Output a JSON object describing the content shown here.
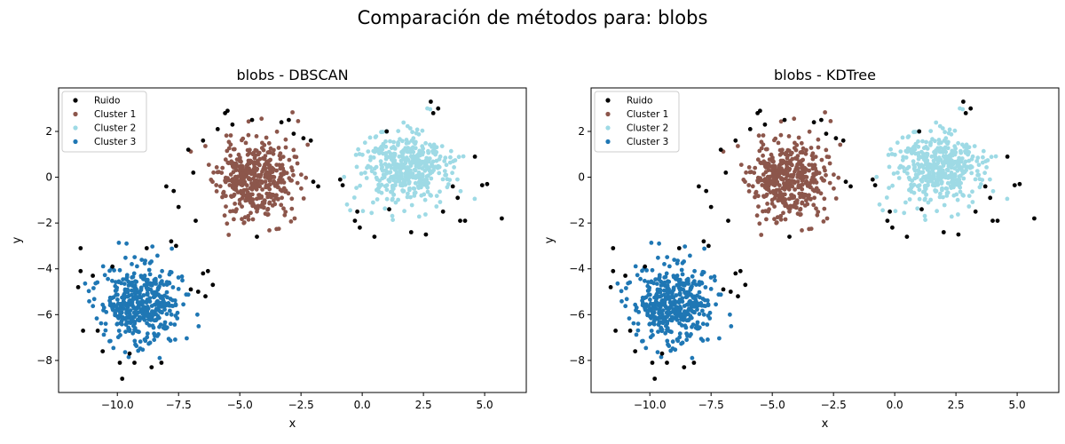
{
  "figure": {
    "suptitle": "Comparación de métodos para: blobs"
  },
  "chart_data": [
    {
      "type": "scatter",
      "title": "blobs - DBSCAN",
      "xlabel": "x",
      "ylabel": "y",
      "xlim": [
        -12.4,
        6.7
      ],
      "ylim": [
        -9.4,
        3.9
      ],
      "xticks": [
        -10.0,
        -7.5,
        -5.0,
        -2.5,
        0.0,
        2.5,
        5.0
      ],
      "xtick_labels": [
        "−10.0",
        "−7.5",
        "−5.0",
        "−2.5",
        "0.0",
        "2.5",
        "5.0"
      ],
      "yticks": [
        -8,
        -6,
        -4,
        -2,
        0,
        2
      ],
      "ytick_labels": [
        "−8",
        "−6",
        "−4",
        "−2",
        "0",
        "2"
      ],
      "grid": false,
      "legend": "top-left",
      "series": [
        {
          "name": "Ruido",
          "color": "#000000",
          "kind": "noise"
        },
        {
          "name": "Cluster 1",
          "color": "#8c564b",
          "kind": "blob",
          "center": [
            -4.4,
            -0.1
          ],
          "spread": [
            0.75,
            0.85
          ],
          "count": 420,
          "seed": 11
        },
        {
          "name": "Cluster 2",
          "color": "#9edae5",
          "kind": "blob",
          "center": [
            1.7,
            0.35
          ],
          "spread": [
            0.85,
            0.8
          ],
          "count": 420,
          "seed": 23
        },
        {
          "name": "Cluster 3",
          "color": "#1f77b4",
          "kind": "blob",
          "center": [
            -9.0,
            -5.5
          ],
          "spread": [
            0.8,
            0.85
          ],
          "count": 430,
          "seed": 37
        }
      ],
      "noise_points": [
        [
          -11.5,
          -3.1
        ],
        [
          -11.5,
          -4.1
        ],
        [
          -11.6,
          -4.8
        ],
        [
          -11.4,
          -6.7
        ],
        [
          -11.0,
          -4.3
        ],
        [
          -10.8,
          -6.7
        ],
        [
          -10.6,
          -7.6
        ],
        [
          -10.2,
          -3.9
        ],
        [
          -9.8,
          -8.8
        ],
        [
          -9.9,
          -8.1
        ],
        [
          -9.5,
          -7.7
        ],
        [
          -9.3,
          -8.1
        ],
        [
          -8.8,
          -3.1
        ],
        [
          -8.6,
          -8.3
        ],
        [
          -8.2,
          -8.1
        ],
        [
          -7.8,
          -2.8
        ],
        [
          -7.6,
          -3.0
        ],
        [
          -7.0,
          -4.9
        ],
        [
          -6.7,
          -5.0
        ],
        [
          -6.4,
          -5.2
        ],
        [
          -6.3,
          -4.1
        ],
        [
          -6.1,
          -4.7
        ],
        [
          -6.5,
          -4.2
        ],
        [
          -8.0,
          -0.4
        ],
        [
          -7.7,
          -0.6
        ],
        [
          -7.5,
          -1.3
        ],
        [
          -7.1,
          1.2
        ],
        [
          -6.9,
          0.2
        ],
        [
          -6.8,
          -1.9
        ],
        [
          -6.5,
          1.6
        ],
        [
          -5.9,
          2.1
        ],
        [
          -5.6,
          2.8
        ],
        [
          -5.5,
          2.9
        ],
        [
          -5.3,
          2.3
        ],
        [
          -4.5,
          2.5
        ],
        [
          -4.3,
          -2.6
        ],
        [
          -3.3,
          2.4
        ],
        [
          -3.0,
          2.5
        ],
        [
          -2.8,
          1.9
        ],
        [
          -2.4,
          1.7
        ],
        [
          -2.1,
          1.6
        ],
        [
          -2.0,
          -0.2
        ],
        [
          -1.8,
          -0.4
        ],
        [
          -0.9,
          -0.1
        ],
        [
          -0.8,
          -0.35
        ],
        [
          -0.3,
          -1.9
        ],
        [
          -0.2,
          -1.5
        ],
        [
          -0.1,
          -2.2
        ],
        [
          0.5,
          -2.6
        ],
        [
          1.0,
          2.0
        ],
        [
          1.1,
          -1.4
        ],
        [
          2.0,
          -2.4
        ],
        [
          2.6,
          -2.5
        ],
        [
          2.8,
          3.3
        ],
        [
          2.9,
          2.8
        ],
        [
          3.1,
          3.0
        ],
        [
          3.3,
          -1.5
        ],
        [
          3.7,
          -0.4
        ],
        [
          3.9,
          -0.9
        ],
        [
          4.0,
          -1.9
        ],
        [
          4.2,
          -1.9
        ],
        [
          4.6,
          0.9
        ],
        [
          4.9,
          -0.35
        ],
        [
          5.1,
          -0.3
        ],
        [
          5.7,
          -1.8
        ]
      ]
    },
    {
      "type": "scatter",
      "title": "blobs - KDTree",
      "xlabel": "x",
      "ylabel": "y",
      "xlim": [
        -12.4,
        6.7
      ],
      "ylim": [
        -9.4,
        3.9
      ],
      "xticks": [
        -10.0,
        -7.5,
        -5.0,
        -2.5,
        0.0,
        2.5,
        5.0
      ],
      "xtick_labels": [
        "−10.0",
        "−7.5",
        "−5.0",
        "−2.5",
        "0.0",
        "2.5",
        "5.0"
      ],
      "yticks": [
        -8,
        -6,
        -4,
        -2,
        0,
        2
      ],
      "ytick_labels": [
        "−8",
        "−6",
        "−4",
        "−2",
        "0",
        "2"
      ],
      "grid": false,
      "legend": "top-left",
      "series": [
        {
          "name": "Ruido",
          "color": "#000000",
          "kind": "noise"
        },
        {
          "name": "Cluster 1",
          "color": "#8c564b",
          "kind": "blob",
          "center": [
            -4.4,
            -0.1
          ],
          "spread": [
            0.75,
            0.85
          ],
          "count": 420,
          "seed": 11
        },
        {
          "name": "Cluster 2",
          "color": "#9edae5",
          "kind": "blob",
          "center": [
            1.7,
            0.35
          ],
          "spread": [
            0.85,
            0.8
          ],
          "count": 420,
          "seed": 23
        },
        {
          "name": "Cluster 3",
          "color": "#1f77b4",
          "kind": "blob",
          "center": [
            -9.0,
            -5.5
          ],
          "spread": [
            0.8,
            0.85
          ],
          "count": 430,
          "seed": 37
        }
      ],
      "noise_points": [
        [
          -11.5,
          -3.1
        ],
        [
          -11.5,
          -4.1
        ],
        [
          -11.6,
          -4.8
        ],
        [
          -11.4,
          -6.7
        ],
        [
          -11.0,
          -4.3
        ],
        [
          -10.8,
          -6.7
        ],
        [
          -10.6,
          -7.6
        ],
        [
          -10.2,
          -3.9
        ],
        [
          -9.8,
          -8.8
        ],
        [
          -9.9,
          -8.1
        ],
        [
          -9.5,
          -7.7
        ],
        [
          -9.3,
          -8.1
        ],
        [
          -8.8,
          -3.1
        ],
        [
          -8.6,
          -8.3
        ],
        [
          -8.2,
          -8.1
        ],
        [
          -7.8,
          -2.8
        ],
        [
          -7.6,
          -3.0
        ],
        [
          -7.0,
          -4.9
        ],
        [
          -6.7,
          -5.0
        ],
        [
          -6.4,
          -5.2
        ],
        [
          -6.3,
          -4.1
        ],
        [
          -6.1,
          -4.7
        ],
        [
          -6.5,
          -4.2
        ],
        [
          -8.0,
          -0.4
        ],
        [
          -7.7,
          -0.6
        ],
        [
          -7.5,
          -1.3
        ],
        [
          -7.1,
          1.2
        ],
        [
          -6.9,
          0.2
        ],
        [
          -6.8,
          -1.9
        ],
        [
          -6.5,
          1.6
        ],
        [
          -5.9,
          2.1
        ],
        [
          -5.6,
          2.8
        ],
        [
          -5.5,
          2.9
        ],
        [
          -5.3,
          2.3
        ],
        [
          -4.5,
          2.5
        ],
        [
          -4.3,
          -2.6
        ],
        [
          -3.3,
          2.4
        ],
        [
          -3.0,
          2.5
        ],
        [
          -2.8,
          1.9
        ],
        [
          -2.4,
          1.7
        ],
        [
          -2.1,
          1.6
        ],
        [
          -2.0,
          -0.2
        ],
        [
          -1.8,
          -0.4
        ],
        [
          -0.9,
          -0.1
        ],
        [
          -0.8,
          -0.35
        ],
        [
          -0.3,
          -1.9
        ],
        [
          -0.2,
          -1.5
        ],
        [
          -0.1,
          -2.2
        ],
        [
          0.5,
          -2.6
        ],
        [
          1.0,
          2.0
        ],
        [
          1.1,
          -1.4
        ],
        [
          2.0,
          -2.4
        ],
        [
          2.6,
          -2.5
        ],
        [
          2.8,
          3.3
        ],
        [
          2.9,
          2.8
        ],
        [
          3.1,
          3.0
        ],
        [
          3.3,
          -1.5
        ],
        [
          3.7,
          -0.4
        ],
        [
          3.9,
          -0.9
        ],
        [
          4.0,
          -1.9
        ],
        [
          4.2,
          -1.9
        ],
        [
          4.6,
          0.9
        ],
        [
          4.9,
          -0.35
        ],
        [
          5.1,
          -0.3
        ],
        [
          5.7,
          -1.8
        ]
      ]
    }
  ]
}
